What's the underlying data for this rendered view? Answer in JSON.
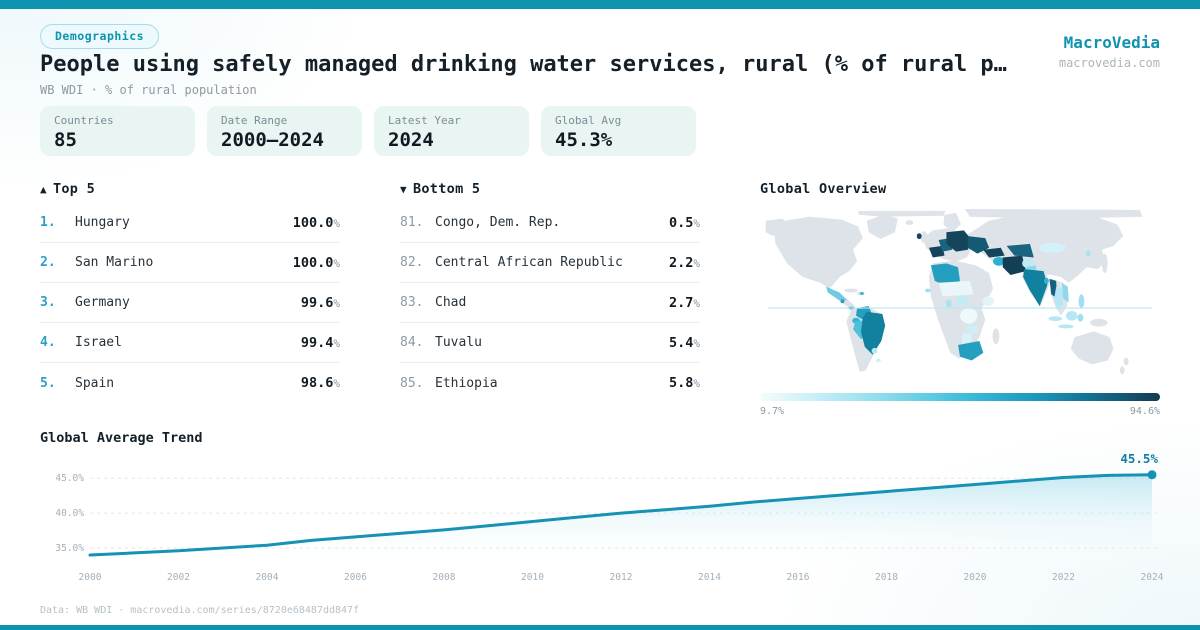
{
  "brand": {
    "name": "MacroVedia",
    "domain": "macrovedia.com"
  },
  "header": {
    "badge": "Demographics",
    "title": "People using safely managed drinking water services, rural (% of rural p…",
    "subtitle": "WB WDI · % of rural population"
  },
  "stats": [
    {
      "label": "Countries",
      "value": "85"
    },
    {
      "label": "Date Range",
      "value": "2000—2024"
    },
    {
      "label": "Latest Year",
      "value": "2024"
    },
    {
      "label": "Global Avg",
      "value": "45.3%"
    }
  ],
  "top5": {
    "arrow": "▲",
    "title": "Top 5",
    "rows": [
      {
        "rank": "1.",
        "country": "Hungary",
        "value": "100.0",
        "unit": "%"
      },
      {
        "rank": "2.",
        "country": "San Marino",
        "value": "100.0",
        "unit": "%"
      },
      {
        "rank": "3.",
        "country": "Germany",
        "value": "99.6",
        "unit": "%"
      },
      {
        "rank": "4.",
        "country": "Israel",
        "value": "99.4",
        "unit": "%"
      },
      {
        "rank": "5.",
        "country": "Spain",
        "value": "98.6",
        "unit": "%"
      }
    ]
  },
  "bottom5": {
    "arrow": "▼",
    "title": "Bottom 5",
    "rows": [
      {
        "rank": "81.",
        "country": "Congo, Dem. Rep.",
        "value": "0.5",
        "unit": "%"
      },
      {
        "rank": "82.",
        "country": "Central African Republic",
        "value": "2.2",
        "unit": "%"
      },
      {
        "rank": "83.",
        "country": "Chad",
        "value": "2.7",
        "unit": "%"
      },
      {
        "rank": "84.",
        "country": "Tuvalu",
        "value": "5.4",
        "unit": "%"
      },
      {
        "rank": "85.",
        "country": "Ethiopia",
        "value": "5.8",
        "unit": "%"
      }
    ]
  },
  "map": {
    "title": "Global Overview",
    "scale_min": "9.7%",
    "scale_max": "94.6%"
  },
  "trend": {
    "title": "Global Average Trend",
    "end_label": "45.5%"
  },
  "chart_data": {
    "type": "area",
    "title": "Global Average Trend",
    "x": [
      2000,
      2001,
      2002,
      2003,
      2004,
      2005,
      2006,
      2007,
      2008,
      2009,
      2010,
      2011,
      2012,
      2013,
      2014,
      2015,
      2016,
      2017,
      2018,
      2019,
      2020,
      2021,
      2022,
      2023,
      2024
    ],
    "values": [
      34.0,
      34.3,
      34.6,
      35.0,
      35.4,
      36.1,
      36.6,
      37.1,
      37.6,
      38.2,
      38.8,
      39.4,
      40.0,
      40.5,
      41.0,
      41.6,
      42.1,
      42.6,
      43.1,
      43.6,
      44.1,
      44.6,
      45.1,
      45.4,
      45.5
    ],
    "xticks": [
      2000,
      2002,
      2004,
      2006,
      2008,
      2010,
      2012,
      2014,
      2016,
      2018,
      2020,
      2022,
      2024
    ],
    "yticks": [
      35,
      40,
      45
    ],
    "ytick_labels": [
      "35.0%",
      "40.0%",
      "45.0%"
    ],
    "ylim": [
      33,
      47.9
    ],
    "grid": "dashed",
    "end_label": "45.5%",
    "legend_position": "none"
  },
  "footer": {
    "text": "Data: WB WDI · macrovedia.com/series/8720e68487dd847f"
  },
  "colors": {
    "accent": "#0e93ae",
    "rank_highlight": "#2d9fc6",
    "line": "#1592b4",
    "card_bg": "#e9f5f3",
    "map_base": "#dde3e8",
    "scale_min_color": "#f4fcfd",
    "scale_max_color": "#123c50"
  }
}
